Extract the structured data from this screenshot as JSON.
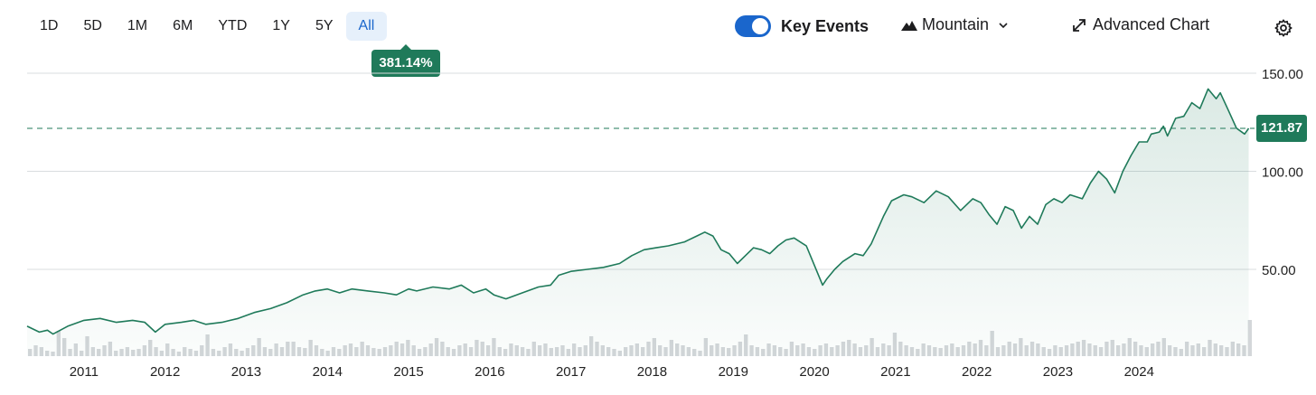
{
  "toolbar": {
    "ranges": [
      "1D",
      "5D",
      "1M",
      "6M",
      "YTD",
      "1Y",
      "5Y",
      "All"
    ],
    "active_range": "All",
    "performance": "381.14%",
    "key_events_label": "Key Events",
    "key_events_on": true,
    "chart_type_label": "Mountain",
    "advanced_chart_label": "Advanced Chart"
  },
  "colors": {
    "line": "#1f7a5a",
    "fill": "#e3efeb",
    "volume": "#d4d7da",
    "accent": "#1a66cc"
  },
  "chart_data": {
    "type": "area",
    "xlabel": "",
    "ylabel": "",
    "ylim": [
      0,
      150
    ],
    "y_ticks": [
      "150.00",
      "100.00",
      "50.00"
    ],
    "x_ticks": [
      "2011",
      "2012",
      "2013",
      "2014",
      "2015",
      "2016",
      "2017",
      "2018",
      "2019",
      "2020",
      "2021",
      "2022",
      "2023",
      "2024"
    ],
    "x_range": [
      2010.3,
      2025.4
    ],
    "last_price": "121.87",
    "last_value": 121.87,
    "grid": true,
    "series": [
      {
        "x": [
          2010.3,
          2010.45,
          2010.55,
          2010.62,
          2010.8,
          2011.0,
          2011.2,
          2011.4,
          2011.6,
          2011.75,
          2011.88,
          2012.0,
          2012.2,
          2012.35,
          2012.5,
          2012.7,
          2012.9,
          2013.1,
          2013.3,
          2013.5,
          2013.7,
          2013.85,
          2014.0,
          2014.15,
          2014.3,
          2014.5,
          2014.7,
          2014.85,
          2015.0,
          2015.1,
          2015.3,
          2015.5,
          2015.65,
          2015.8,
          2015.95,
          2016.05,
          2016.2,
          2016.4,
          2016.6,
          2016.75,
          2016.85,
          2017.0,
          2017.2,
          2017.4,
          2017.6,
          2017.75,
          2017.9,
          2018.05,
          2018.2,
          2018.4,
          2018.55,
          2018.65,
          2018.75,
          2018.85,
          2018.95,
          2019.05,
          2019.15,
          2019.25,
          2019.35,
          2019.45,
          2019.55,
          2019.65,
          2019.75,
          2019.9,
          2020.0,
          2020.1,
          2020.15,
          2020.25,
          2020.35,
          2020.5,
          2020.6,
          2020.7,
          2020.85,
          2020.95,
          2021.1,
          2021.2,
          2021.35,
          2021.5,
          2021.65,
          2021.8,
          2021.95,
          2022.05,
          2022.15,
          2022.25,
          2022.35,
          2022.45,
          2022.55,
          2022.65,
          2022.75,
          2022.85,
          2022.95,
          2023.05,
          2023.15,
          2023.3,
          2023.4,
          2023.5,
          2023.6,
          2023.7,
          2023.8,
          2023.9,
          2024.0,
          2024.1,
          2024.15,
          2024.25,
          2024.3,
          2024.35,
          2024.45,
          2024.55,
          2024.65,
          2024.75,
          2024.85,
          2024.95,
          2025.0,
          2025.1,
          2025.2,
          2025.3,
          2025.35
        ],
        "values": [
          21,
          18,
          19,
          17,
          21,
          24,
          25,
          23,
          24,
          23,
          18,
          22,
          23,
          24,
          22,
          23,
          25,
          28,
          30,
          33,
          37,
          39,
          40,
          38,
          40,
          39,
          38,
          37,
          40,
          39,
          41,
          40,
          42,
          38,
          40,
          37,
          35,
          38,
          41,
          42,
          47,
          49,
          50,
          51,
          53,
          57,
          60,
          61,
          62,
          64,
          67,
          69,
          67,
          60,
          58,
          53,
          57,
          61,
          60,
          58,
          62,
          65,
          66,
          62,
          52,
          42,
          45,
          50,
          54,
          58,
          57,
          63,
          77,
          85,
          88,
          87,
          84,
          90,
          87,
          80,
          86,
          84,
          78,
          73,
          82,
          80,
          71,
          77,
          73,
          83,
          86,
          84,
          88,
          86,
          94,
          100,
          96,
          89,
          100,
          108,
          115,
          115,
          119,
          120,
          123,
          118,
          127,
          128,
          135,
          132,
          142,
          137,
          140,
          131,
          122,
          119,
          121.87
        ]
      }
    ]
  }
}
